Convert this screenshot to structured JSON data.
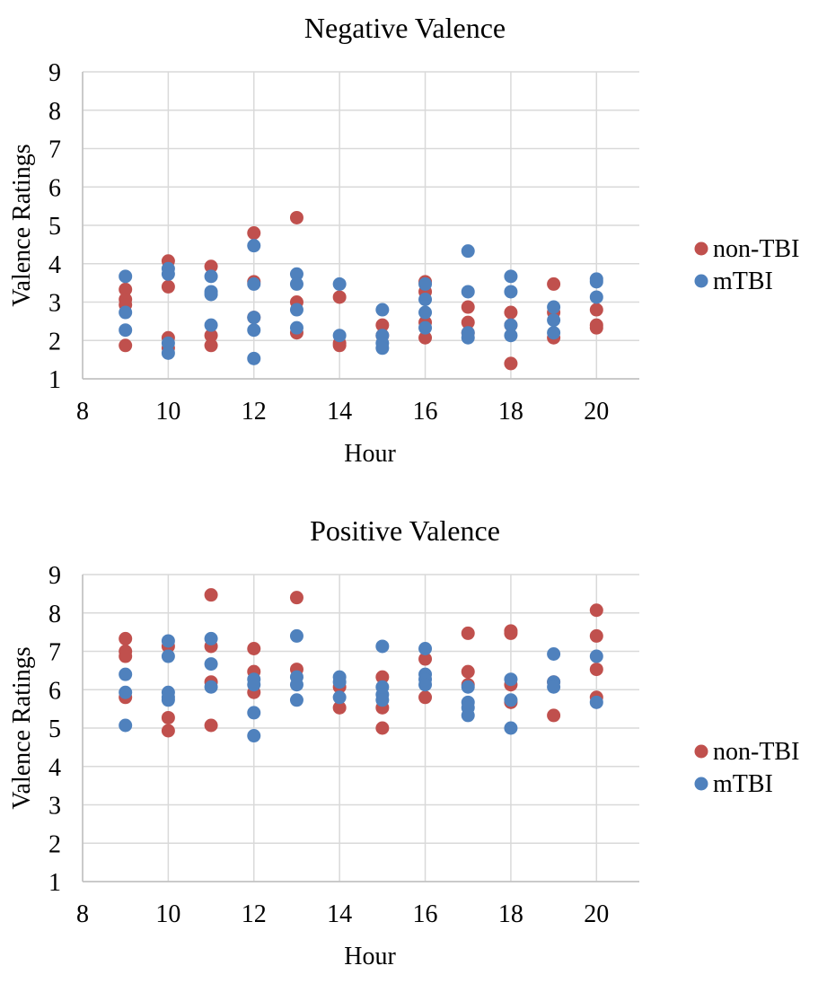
{
  "chart_data": [
    {
      "type": "scatter",
      "title": "Negative Valence",
      "xlabel": "Hour",
      "ylabel": "Valence Ratings",
      "xlim": [
        8,
        21
      ],
      "ylim": [
        1,
        9
      ],
      "x_ticks": [
        8,
        10,
        12,
        14,
        16,
        18,
        20
      ],
      "y_ticks": [
        1,
        2,
        3,
        4,
        5,
        6,
        7,
        8,
        9
      ],
      "grid": true,
      "legend_position": "right",
      "series": [
        {
          "name": "non-TBI",
          "color": "#c0504d",
          "points": [
            [
              9,
              3.33
            ],
            [
              9,
              3.07
            ],
            [
              9,
              2.93
            ],
            [
              9,
              1.87
            ],
            [
              10,
              4.07
            ],
            [
              10,
              3.4
            ],
            [
              10,
              2.07
            ],
            [
              10,
              1.8
            ],
            [
              11,
              3.93
            ],
            [
              11,
              2.13
            ],
            [
              11,
              1.87
            ],
            [
              12,
              4.8
            ],
            [
              12,
              3.53
            ],
            [
              12,
              2.6
            ],
            [
              13,
              5.2
            ],
            [
              13,
              3.0
            ],
            [
              13,
              2.2
            ],
            [
              14,
              3.13
            ],
            [
              14,
              1.93
            ],
            [
              14,
              1.87
            ],
            [
              15,
              2.4
            ],
            [
              15,
              2.13
            ],
            [
              16,
              3.53
            ],
            [
              16,
              3.27
            ],
            [
              16,
              2.47
            ],
            [
              16,
              2.07
            ],
            [
              17,
              2.87
            ],
            [
              17,
              2.47
            ],
            [
              17,
              2.2
            ],
            [
              18,
              2.73
            ],
            [
              18,
              2.4
            ],
            [
              18,
              1.4
            ],
            [
              19,
              3.47
            ],
            [
              19,
              2.73
            ],
            [
              19,
              2.07
            ],
            [
              20,
              2.8
            ],
            [
              20,
              2.4
            ],
            [
              20,
              2.33
            ]
          ]
        },
        {
          "name": "mTBI",
          "color": "#4f81bd",
          "points": [
            [
              9,
              3.67
            ],
            [
              9,
              2.73
            ],
            [
              9,
              2.27
            ],
            [
              10,
              3.87
            ],
            [
              10,
              3.73
            ],
            [
              10,
              1.93
            ],
            [
              10,
              1.67
            ],
            [
              11,
              3.67
            ],
            [
              11,
              3.27
            ],
            [
              11,
              3.2
            ],
            [
              11,
              2.4
            ],
            [
              12,
              4.47
            ],
            [
              12,
              3.47
            ],
            [
              12,
              2.6
            ],
            [
              12,
              2.27
            ],
            [
              12,
              1.53
            ],
            [
              13,
              3.73
            ],
            [
              13,
              3.47
            ],
            [
              13,
              2.8
            ],
            [
              13,
              2.33
            ],
            [
              14,
              3.47
            ],
            [
              14,
              2.13
            ],
            [
              15,
              2.8
            ],
            [
              15,
              2.13
            ],
            [
              15,
              1.93
            ],
            [
              15,
              1.8
            ],
            [
              16,
              3.47
            ],
            [
              16,
              3.07
            ],
            [
              16,
              2.73
            ],
            [
              16,
              2.33
            ],
            [
              17,
              4.33
            ],
            [
              17,
              3.27
            ],
            [
              17,
              2.2
            ],
            [
              17,
              2.07
            ],
            [
              18,
              3.67
            ],
            [
              18,
              3.27
            ],
            [
              18,
              2.4
            ],
            [
              18,
              2.13
            ],
            [
              19,
              2.87
            ],
            [
              19,
              2.53
            ],
            [
              19,
              2.2
            ],
            [
              20,
              3.6
            ],
            [
              20,
              3.53
            ],
            [
              20,
              3.13
            ]
          ]
        }
      ]
    },
    {
      "type": "scatter",
      "title": "Positive Valence",
      "xlabel": "Hour",
      "ylabel": "Valence Ratings",
      "xlim": [
        8,
        21
      ],
      "ylim": [
        1,
        9
      ],
      "x_ticks": [
        8,
        10,
        12,
        14,
        16,
        18,
        20
      ],
      "y_ticks": [
        1,
        2,
        3,
        4,
        5,
        6,
        7,
        8,
        9
      ],
      "grid": true,
      "legend_position": "right",
      "series": [
        {
          "name": "non-TBI",
          "color": "#c0504d",
          "points": [
            [
              9,
              7.33
            ],
            [
              9,
              7.0
            ],
            [
              9,
              6.87
            ],
            [
              9,
              5.8
            ],
            [
              10,
              7.13
            ],
            [
              10,
              5.27
            ],
            [
              10,
              4.93
            ],
            [
              11,
              8.47
            ],
            [
              11,
              7.13
            ],
            [
              11,
              6.2
            ],
            [
              11,
              5.07
            ],
            [
              12,
              7.07
            ],
            [
              12,
              6.47
            ],
            [
              12,
              5.93
            ],
            [
              13,
              8.4
            ],
            [
              13,
              6.53
            ],
            [
              14,
              6.07
            ],
            [
              14,
              5.53
            ],
            [
              15,
              6.33
            ],
            [
              15,
              5.53
            ],
            [
              15,
              5.0
            ],
            [
              16,
              6.8
            ],
            [
              16,
              5.8
            ],
            [
              17,
              7.47
            ],
            [
              17,
              6.47
            ],
            [
              17,
              6.13
            ],
            [
              18,
              7.53
            ],
            [
              18,
              7.47
            ],
            [
              18,
              6.13
            ],
            [
              18,
              5.67
            ],
            [
              19,
              6.2
            ],
            [
              19,
              5.33
            ],
            [
              20,
              8.07
            ],
            [
              20,
              7.4
            ],
            [
              20,
              6.53
            ],
            [
              20,
              5.8
            ]
          ]
        },
        {
          "name": "mTBI",
          "color": "#4f81bd",
          "points": [
            [
              9,
              6.4
            ],
            [
              9,
              5.93
            ],
            [
              9,
              5.07
            ],
            [
              10,
              7.27
            ],
            [
              10,
              6.87
            ],
            [
              10,
              5.93
            ],
            [
              10,
              5.8
            ],
            [
              10,
              5.73
            ],
            [
              11,
              7.33
            ],
            [
              11,
              6.67
            ],
            [
              11,
              6.07
            ],
            [
              12,
              6.27
            ],
            [
              12,
              6.13
            ],
            [
              12,
              5.4
            ],
            [
              12,
              4.8
            ],
            [
              13,
              7.4
            ],
            [
              13,
              6.33
            ],
            [
              13,
              6.13
            ],
            [
              13,
              5.73
            ],
            [
              14,
              6.33
            ],
            [
              14,
              6.2
            ],
            [
              14,
              5.8
            ],
            [
              15,
              7.13
            ],
            [
              15,
              6.07
            ],
            [
              15,
              5.87
            ],
            [
              15,
              5.73
            ],
            [
              16,
              7.07
            ],
            [
              16,
              6.4
            ],
            [
              16,
              6.27
            ],
            [
              16,
              6.13
            ],
            [
              17,
              5.67
            ],
            [
              17,
              5.53
            ],
            [
              17,
              5.33
            ],
            [
              17,
              6.07
            ],
            [
              18,
              6.27
            ],
            [
              18,
              5.73
            ],
            [
              18,
              5.0
            ],
            [
              19,
              6.93
            ],
            [
              19,
              6.2
            ],
            [
              19,
              6.07
            ],
            [
              20,
              6.87
            ],
            [
              20,
              5.67
            ]
          ]
        }
      ]
    }
  ]
}
